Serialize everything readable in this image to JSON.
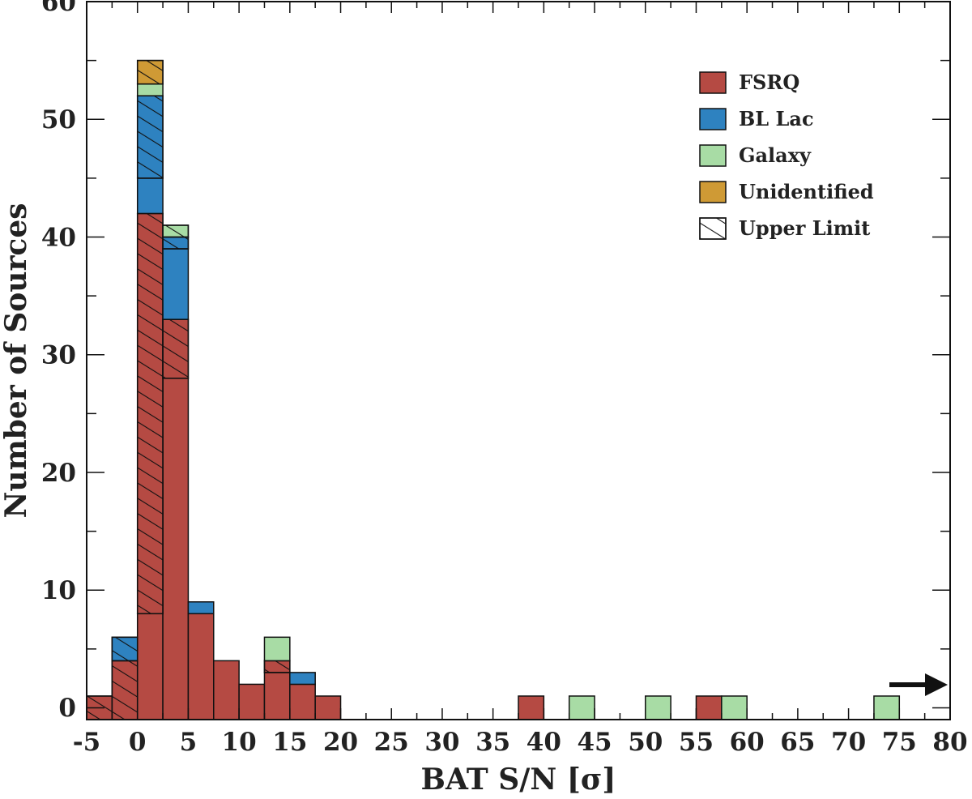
{
  "chart_data": {
    "type": "bar",
    "stacked": true,
    "xlabel": "BAT S/N [σ]",
    "ylabel": "Number of Sources",
    "xlim": [
      -5,
      80
    ],
    "ylim": [
      -1,
      60
    ],
    "bin_width": 2.5,
    "x_ticks": [
      "-5",
      "0",
      "5",
      "10",
      "15",
      "20",
      "25",
      "30",
      "35",
      "40",
      "45",
      "50",
      "55",
      "60",
      "65",
      "70",
      "75",
      "80"
    ],
    "y_ticks": [
      "0",
      "10",
      "20",
      "30",
      "40",
      "50",
      "60"
    ],
    "legend_position": "top-right",
    "grid": false,
    "overflow_arrow": "right",
    "legend": [
      {
        "label": "FSRQ",
        "color": "#b54a43"
      },
      {
        "label": "BL Lac",
        "color": "#2e82c0"
      },
      {
        "label": "Galaxy",
        "color": "#a8dca5"
      },
      {
        "label": "Unidentified",
        "color": "#cf9a35"
      },
      {
        "label": "Upper Limit",
        "hatched": true
      }
    ],
    "series": [
      {
        "name": "FSRQ",
        "color": "#b54a43",
        "segments": [
          {
            "x0": -5,
            "x1": -2.5,
            "value": 1,
            "hatched": true
          },
          {
            "x0": -2.5,
            "x1": 0,
            "value": 4,
            "hatched": true
          },
          {
            "x0": 0,
            "x1": 2.5,
            "value": 8,
            "hatched": false
          },
          {
            "x0": 0,
            "x1": 2.5,
            "value": 34,
            "hatched": true
          },
          {
            "x0": 2.5,
            "x1": 5,
            "value": 28,
            "hatched": false
          },
          {
            "x0": 2.5,
            "x1": 5,
            "value": 5,
            "hatched": true
          },
          {
            "x0": 5,
            "x1": 7.5,
            "value": 8,
            "hatched": false
          },
          {
            "x0": 7.5,
            "x1": 10,
            "value": 4,
            "hatched": false
          },
          {
            "x0": 10,
            "x1": 12.5,
            "value": 2,
            "hatched": false
          },
          {
            "x0": 12.5,
            "x1": 15,
            "value": 3,
            "hatched": false
          },
          {
            "x0": 12.5,
            "x1": 15,
            "value": 1,
            "hatched": true
          },
          {
            "x0": 15,
            "x1": 17.5,
            "value": 2,
            "hatched": false
          },
          {
            "x0": 17.5,
            "x1": 20,
            "value": 1,
            "hatched": false
          },
          {
            "x0": 37.5,
            "x1": 40,
            "value": 1,
            "hatched": false
          },
          {
            "x0": 55,
            "x1": 57.5,
            "value": 1,
            "hatched": false
          }
        ]
      },
      {
        "name": "BL Lac",
        "color": "#2e82c0",
        "segments": [
          {
            "x0": -2.5,
            "x1": 0,
            "value": 2,
            "hatched": true
          },
          {
            "x0": 0,
            "x1": 2.5,
            "value": 3,
            "hatched": false
          },
          {
            "x0": 0,
            "x1": 2.5,
            "value": 7,
            "hatched": true
          },
          {
            "x0": 2.5,
            "x1": 5,
            "value": 6,
            "hatched": false
          },
          {
            "x0": 2.5,
            "x1": 5,
            "value": 1,
            "hatched": true
          },
          {
            "x0": 5,
            "x1": 7.5,
            "value": 1,
            "hatched": false
          },
          {
            "x0": 15,
            "x1": 17.5,
            "value": 1,
            "hatched": false
          }
        ]
      },
      {
        "name": "Galaxy",
        "color": "#a8dca5",
        "segments": [
          {
            "x0": 0,
            "x1": 2.5,
            "value": 1,
            "hatched": false
          },
          {
            "x0": 2.5,
            "x1": 5,
            "value": 1,
            "hatched": true
          },
          {
            "x0": 12.5,
            "x1": 15,
            "value": 2,
            "hatched": false
          },
          {
            "x0": 42.5,
            "x1": 45,
            "value": 1,
            "hatched": false
          },
          {
            "x0": 50,
            "x1": 52.5,
            "value": 1,
            "hatched": false
          },
          {
            "x0": 57.5,
            "x1": 60,
            "value": 1,
            "hatched": false
          },
          {
            "x0": 72.5,
            "x1": 75,
            "value": 1,
            "hatched": false
          }
        ]
      },
      {
        "name": "Unidentified",
        "color": "#cf9a35",
        "segments": [
          {
            "x0": 0,
            "x1": 2.5,
            "value": 2,
            "hatched": true
          }
        ]
      }
    ]
  }
}
